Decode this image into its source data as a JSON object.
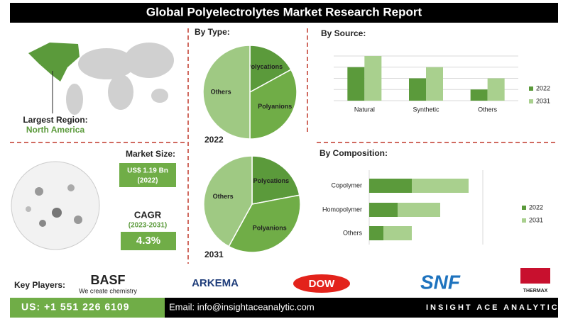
{
  "header": {
    "title": "Global Polyelectrolytes Market Research Report"
  },
  "region": {
    "label": "Largest Region:",
    "value": "North America"
  },
  "market_size": {
    "label": "Market Size:",
    "value": "US$ 1.19 Bn",
    "year": "(2022)"
  },
  "cagr": {
    "label": "CAGR",
    "period": "(2023-2031)",
    "value": "4.3%"
  },
  "headings": {
    "type": "By Type:",
    "source": "By  Source:",
    "composition": "By Composition:"
  },
  "chart_data": [
    {
      "type": "pie",
      "label": "2022",
      "categories": [
        "Polycations",
        "Polyanions",
        "Others"
      ],
      "values": [
        17,
        33,
        50
      ],
      "colors": [
        "#5b9a3b",
        "#70ad47",
        "#9fc983"
      ]
    },
    {
      "type": "pie",
      "label": "2031",
      "categories": [
        "Polycations",
        "Polyanions",
        "Others"
      ],
      "values": [
        22,
        36,
        42
      ],
      "colors": [
        "#5b9a3b",
        "#70ad47",
        "#9fc983"
      ]
    },
    {
      "type": "bar",
      "categories": [
        "Natural",
        "Synthetic",
        "Others"
      ],
      "series": [
        {
          "name": "2022",
          "color": "#5b9a3b",
          "values": [
            3,
            2,
            1
          ]
        },
        {
          "name": "2031",
          "color": "#a9d08e",
          "values": [
            4,
            3,
            2
          ]
        }
      ],
      "ylim": [
        0,
        4
      ],
      "yticks": [
        0,
        1,
        2,
        3,
        4
      ],
      "grid": true
    },
    {
      "type": "stacked_hbar",
      "categories": [
        "Copolymer",
        "Homopolymer",
        "Others"
      ],
      "series": [
        {
          "name": "2022",
          "color": "#5b9a3b",
          "values": [
            3,
            2,
            1
          ]
        },
        {
          "name": "2031",
          "color": "#a9d08e",
          "values": [
            4,
            3,
            2
          ]
        }
      ],
      "xlim": [
        0,
        8
      ]
    }
  ],
  "key_players": {
    "label": "Key Players:",
    "companies": [
      "BASF",
      "ARKEMA",
      "DOW",
      "SNF",
      "THERMAX"
    ],
    "basf_tagline": "We create chemistry"
  },
  "footer": {
    "phone": "US: +1 551 226 6109",
    "email": "Email: info@insightaceanalytic.com",
    "brand": "INSIGHT ACE ANALYTIC"
  }
}
